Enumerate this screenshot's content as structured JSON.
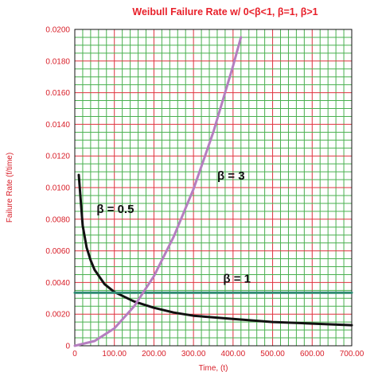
{
  "chart_data": {
    "type": "line",
    "title": "Weibull Failure Rate w/ 0<β<1, β=1, β>1",
    "xlabel": "Time, (t)",
    "ylabel": "Failure Rate (f/time)",
    "xlim": [
      0,
      700
    ],
    "ylim": [
      0,
      0.02
    ],
    "x_ticks": [
      "0",
      "100.00",
      "200.00",
      "300.00",
      "400.00",
      "500.00",
      "600.00",
      "700.00"
    ],
    "y_ticks": [
      "0",
      "0.0020",
      "0.0040",
      "0.0060",
      "0.0080",
      "0.0100",
      "0.0120",
      "0.0140",
      "0.0160",
      "0.0180",
      "0.0200"
    ],
    "grid": true,
    "series": [
      {
        "name": "β = 0.5",
        "color": "#111111",
        "x": [
          10,
          20,
          30,
          40,
          50,
          75,
          100,
          150,
          200,
          250,
          300,
          400,
          500,
          600,
          700
        ],
        "y": [
          0.0108,
          0.0076,
          0.0062,
          0.0054,
          0.0048,
          0.0039,
          0.0034,
          0.0028,
          0.0024,
          0.0021,
          0.0019,
          0.0017,
          0.0015,
          0.0014,
          0.0013
        ]
      },
      {
        "name": "β = 1",
        "color": "#2e8b72",
        "x": [
          0,
          700
        ],
        "y": [
          0.00335,
          0.00335
        ]
      },
      {
        "name": "β = 3",
        "color": "#b57ec0",
        "x": [
          0,
          50,
          100,
          150,
          200,
          250,
          300,
          350,
          400,
          420
        ],
        "y": [
          0,
          0.0003,
          0.0011,
          0.0025,
          0.0044,
          0.0069,
          0.0099,
          0.0135,
          0.0177,
          0.0195
        ]
      }
    ],
    "annotations": [
      {
        "text": "β = 0.5",
        "x": 55,
        "y": 0.0084
      },
      {
        "text": "β = 3",
        "x": 360,
        "y": 0.0105
      },
      {
        "text": "β = 1",
        "x": 375,
        "y": 0.004
      }
    ]
  }
}
